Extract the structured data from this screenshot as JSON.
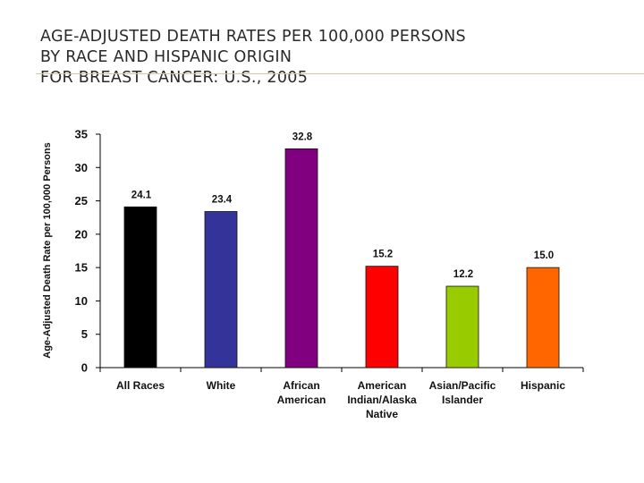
{
  "slide": {
    "title_lines": [
      "AGE-ADJUSTED DEATH RATES PER 100,000 PERSONS",
      "BY RACE AND HISPANIC ORIGIN",
      "FOR BREAST CANCER: U.S., 2005"
    ]
  },
  "chart_data": {
    "type": "bar",
    "title": "AGE-ADJUSTED DEATH RATES PER 100,000 PERSONS BY RACE AND HISPANIC ORIGIN FOR BREAST CANCER: U.S., 2005",
    "xlabel": "",
    "ylabel": "Age-Adjusted Death Rate per 100,000 Persons",
    "ylim": [
      0,
      35
    ],
    "yticks": [
      0,
      5,
      10,
      15,
      20,
      25,
      30,
      35
    ],
    "categories": [
      [
        "All Races"
      ],
      [
        "White"
      ],
      [
        "African",
        "American"
      ],
      [
        "American",
        "Indian/Alaska",
        "Native"
      ],
      [
        "Asian/Pacific",
        "Islander"
      ],
      [
        "Hispanic"
      ]
    ],
    "values": [
      24.1,
      23.4,
      32.8,
      15.2,
      12.2,
      15.0
    ],
    "value_labels": [
      "24.1",
      "23.4",
      "32.8",
      "15.2",
      "12.2",
      "15.0"
    ],
    "colors": [
      "#000000",
      "#333399",
      "#800080",
      "#ff0000",
      "#99cc00",
      "#ff6600"
    ]
  }
}
